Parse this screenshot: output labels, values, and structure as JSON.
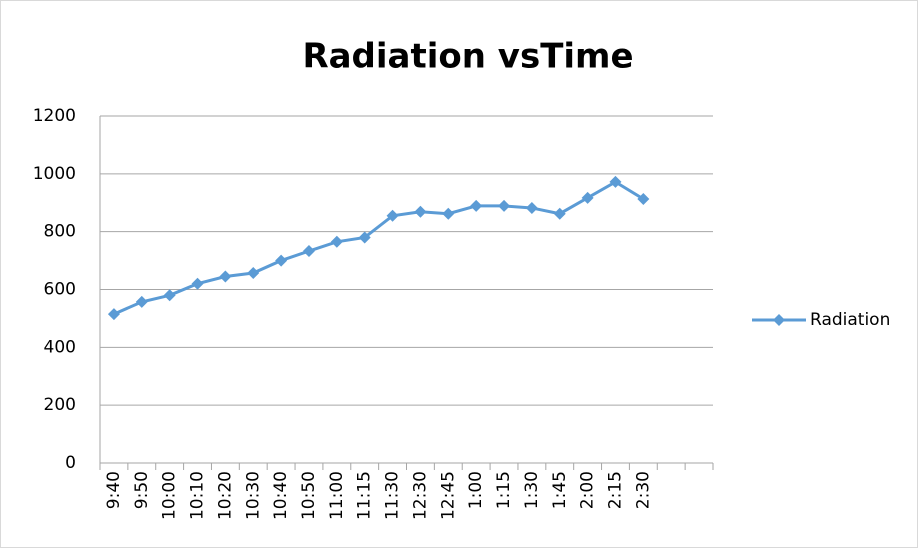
{
  "chart_data": {
    "type": "line",
    "title": "Radiation vsTime",
    "categories": [
      "9:40",
      "9:50",
      "10:00",
      "10:10",
      "10:20",
      "10:30",
      "10:40",
      "10:50",
      "11:00",
      "11:15",
      "11:30",
      "12:30",
      "12:45",
      "1:00",
      "1:15",
      "1:30",
      "1:45",
      "2:00",
      "2:15",
      "2:30",
      null,
      null
    ],
    "series": [
      {
        "name": "Radiation",
        "color": "#5b9bd5",
        "values": [
          515,
          557,
          580,
          620,
          645,
          657,
          700,
          733,
          765,
          780,
          855,
          869,
          862,
          889,
          889,
          882,
          862,
          917,
          972,
          913,
          null,
          null
        ]
      }
    ],
    "ylim": [
      0,
      1200
    ],
    "yticks": [
      0,
      200,
      400,
      600,
      800,
      1000,
      1200
    ],
    "grid": true,
    "legend": "right"
  }
}
